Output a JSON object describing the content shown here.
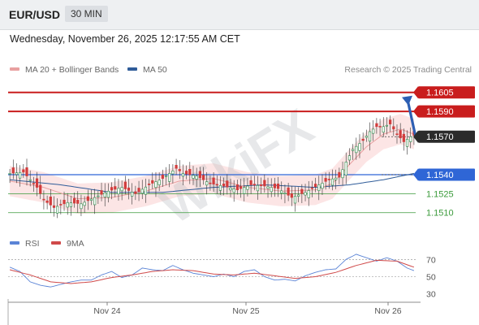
{
  "header": {
    "pair": "EUR/USD",
    "timeframe": "30 MIN"
  },
  "datetime": "Wednesday, November 26, 2025 12:17:55 AM CET",
  "legend": {
    "ma20_label": "MA 20 + Bollinger Bands",
    "ma50_label": "MA 50",
    "rsi_label": "RSI",
    "ma9_label": "9MA",
    "research": "Research © 2025 Trading Central"
  },
  "watermark": "WikiFX",
  "colors": {
    "up": "#2a8a4a",
    "down": "#d23c3c",
    "ma20": "#e8a0a0",
    "ma50": "#2f5c99",
    "bollinger_fill": "#fbe1e1",
    "resistance": "#c91d1d",
    "support": "#2f66d6",
    "support_minor": "#3a9a3a",
    "rsi": "#5b84d6",
    "rsi_ma": "#d04a4a",
    "arrow": "#2d5fb3"
  },
  "chart_data": [
    {
      "type": "candlestick",
      "x_labels": [
        "Nov 24",
        "Nov 25",
        "Nov 26"
      ],
      "ylim": [
        1.5027,
        1.1617
      ],
      "levels": [
        {
          "value": 1.1605,
          "label": "1.1605",
          "kind": "resistance"
        },
        {
          "value": 1.159,
          "label": "1.1590",
          "kind": "resistance"
        },
        {
          "value": 1.157,
          "label": "1.1570",
          "kind": "current"
        },
        {
          "value": 1.154,
          "label": "1.1540",
          "kind": "pivot"
        },
        {
          "value": 1.1525,
          "label": "1.1525",
          "kind": "support"
        },
        {
          "value": 1.151,
          "label": "1.1510",
          "kind": "support"
        }
      ],
      "close_points": [
        [
          0,
          1.1541
        ],
        [
          4,
          1.1542
        ],
        [
          8,
          1.153
        ],
        [
          10,
          1.152
        ],
        [
          13,
          1.1514
        ],
        [
          17,
          1.1518
        ],
        [
          21,
          1.1517
        ],
        [
          25,
          1.1522
        ],
        [
          29,
          1.1527
        ],
        [
          33,
          1.153
        ],
        [
          37,
          1.1525
        ],
        [
          41,
          1.1532
        ],
        [
          45,
          1.1537
        ],
        [
          49,
          1.1545
        ],
        [
          51,
          1.1541
        ],
        [
          55,
          1.1539
        ],
        [
          59,
          1.1533
        ],
        [
          63,
          1.1531
        ],
        [
          67,
          1.1528
        ],
        [
          71,
          1.1532
        ],
        [
          75,
          1.1531
        ],
        [
          79,
          1.1529
        ],
        [
          83,
          1.1522
        ],
        [
          87,
          1.1526
        ],
        [
          91,
          1.1532
        ],
        [
          94,
          1.1536
        ],
        [
          97,
          1.1538
        ],
        [
          99,
          1.155
        ],
        [
          101,
          1.156
        ],
        [
          104,
          1.1567
        ],
        [
          106,
          1.1574
        ],
        [
          108,
          1.1578
        ],
        [
          110,
          1.1578
        ],
        [
          112,
          1.158
        ],
        [
          114,
          1.1572
        ],
        [
          116,
          1.1566
        ],
        [
          118,
          1.157
        ],
        [
          119,
          1.1571
        ]
      ],
      "ma20_points": [
        [
          0,
          1.1535
        ],
        [
          10,
          1.153
        ],
        [
          20,
          1.1521
        ],
        [
          30,
          1.1522
        ],
        [
          40,
          1.1527
        ],
        [
          50,
          1.1535
        ],
        [
          60,
          1.1537
        ],
        [
          70,
          1.153
        ],
        [
          80,
          1.1527
        ],
        [
          90,
          1.1528
        ],
        [
          95,
          1.1533
        ],
        [
          100,
          1.1548
        ],
        [
          105,
          1.1562
        ],
        [
          110,
          1.1572
        ],
        [
          115,
          1.1576
        ],
        [
          119,
          1.1572
        ]
      ],
      "ma50_points": [
        [
          0,
          1.1536
        ],
        [
          15,
          1.1532
        ],
        [
          30,
          1.1526
        ],
        [
          45,
          1.1526
        ],
        [
          60,
          1.153
        ],
        [
          75,
          1.1532
        ],
        [
          90,
          1.153
        ],
        [
          100,
          1.1532
        ],
        [
          110,
          1.1536
        ],
        [
          119,
          1.1541
        ]
      ],
      "bollinger_halfwidth": 0.0012,
      "projection": {
        "from": 1.157,
        "to": 1.1605
      }
    },
    {
      "type": "line",
      "title": "RSI",
      "ylim": [
        25,
        75
      ],
      "ticks": [
        30,
        50,
        70
      ],
      "rsi_points": [
        [
          0,
          61
        ],
        [
          3,
          56
        ],
        [
          6,
          44
        ],
        [
          9,
          40
        ],
        [
          12,
          38
        ],
        [
          15,
          41
        ],
        [
          18,
          44
        ],
        [
          21,
          46
        ],
        [
          24,
          46
        ],
        [
          27,
          52
        ],
        [
          30,
          56
        ],
        [
          33,
          49
        ],
        [
          36,
          52
        ],
        [
          39,
          60
        ],
        [
          42,
          58
        ],
        [
          45,
          57
        ],
        [
          48,
          63
        ],
        [
          51,
          58
        ],
        [
          54,
          54
        ],
        [
          57,
          52
        ],
        [
          60,
          50
        ],
        [
          63,
          53
        ],
        [
          66,
          50
        ],
        [
          69,
          56
        ],
        [
          72,
          58
        ],
        [
          75,
          50
        ],
        [
          78,
          46
        ],
        [
          81,
          47
        ],
        [
          84,
          45
        ],
        [
          87,
          51
        ],
        [
          90,
          55
        ],
        [
          93,
          58
        ],
        [
          96,
          59
        ],
        [
          99,
          70
        ],
        [
          102,
          76
        ],
        [
          105,
          72
        ],
        [
          108,
          68
        ],
        [
          111,
          72
        ],
        [
          114,
          68
        ],
        [
          117,
          60
        ],
        [
          119,
          57
        ]
      ],
      "ma9_points": [
        [
          0,
          58
        ],
        [
          6,
          52
        ],
        [
          12,
          44
        ],
        [
          18,
          42
        ],
        [
          24,
          44
        ],
        [
          30,
          49
        ],
        [
          36,
          52
        ],
        [
          42,
          56
        ],
        [
          48,
          58
        ],
        [
          54,
          57
        ],
        [
          60,
          53
        ],
        [
          66,
          52
        ],
        [
          72,
          54
        ],
        [
          78,
          51
        ],
        [
          84,
          48
        ],
        [
          90,
          50
        ],
        [
          96,
          55
        ],
        [
          102,
          63
        ],
        [
          108,
          69
        ],
        [
          114,
          68
        ],
        [
          119,
          61
        ]
      ]
    }
  ]
}
